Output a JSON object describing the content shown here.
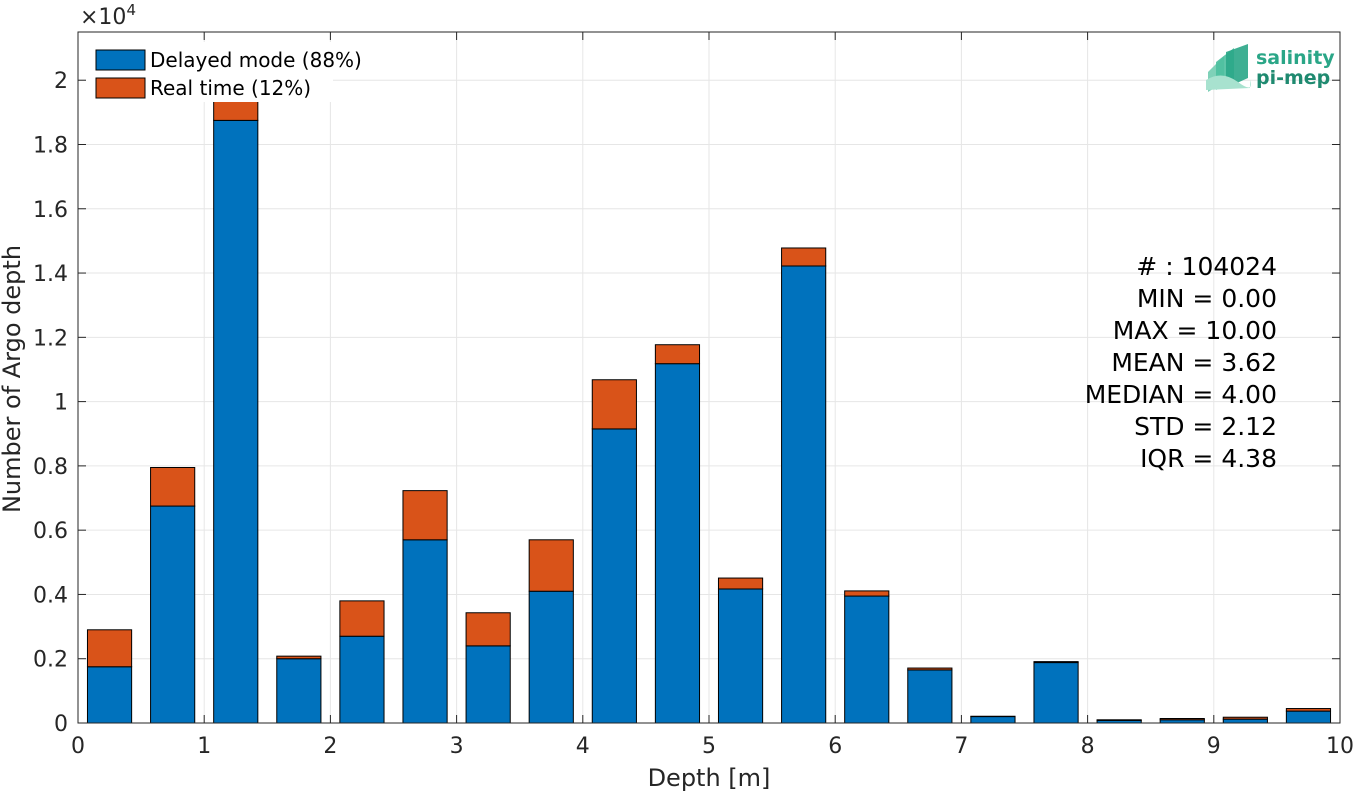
{
  "chart_data": {
    "type": "bar",
    "stacked": true,
    "xlabel": "Depth [m]",
    "ylabel": "Number of Argo depth",
    "y_multiplier": "×10",
    "y_exponent": "4",
    "xlim": [
      0,
      10
    ],
    "ylim": [
      0,
      2.15
    ],
    "grid": true,
    "legend_position": "top-left",
    "x_ticks": [
      "0",
      "1",
      "2",
      "3",
      "4",
      "5",
      "6",
      "7",
      "8",
      "9",
      "10"
    ],
    "y_ticks": [
      "0",
      "0.2",
      "0.4",
      "0.6",
      "0.8",
      "1",
      "1.2",
      "1.4",
      "1.6",
      "1.8",
      "2"
    ],
    "bin_edges": [
      0,
      0.5,
      1,
      1.5,
      2,
      2.5,
      3,
      3.5,
      4,
      4.5,
      5,
      5.5,
      6,
      6.5,
      7,
      7.5,
      8,
      8.5,
      9,
      9.5,
      10
    ],
    "series": [
      {
        "name": "Delayed mode (88%)",
        "color": "#0072BD",
        "values": [
          0.175,
          0.675,
          1.875,
          0.2,
          0.27,
          0.57,
          0.24,
          0.41,
          0.915,
          1.118,
          0.417,
          1.422,
          0.395,
          0.165,
          0.02,
          0.188,
          0.008,
          0.01,
          0.012,
          0.037
        ]
      },
      {
        "name": "Real time (12%)",
        "color": "#D95319",
        "values": [
          0.115,
          0.12,
          0.17,
          0.008,
          0.11,
          0.153,
          0.103,
          0.16,
          0.153,
          0.059,
          0.034,
          0.056,
          0.016,
          0.006,
          0.001,
          0.003,
          0.002,
          0.004,
          0.006,
          0.008
        ]
      }
    ],
    "stats": [
      "# : 104024",
      "MIN = 0.00",
      "MAX =  10.00",
      "MEAN = 3.62",
      "MEDIAN = 4.00",
      "STD = 2.12",
      "IQR = 4.38"
    ]
  },
  "logo": {
    "line1": "salinity",
    "line2": "pi-mep",
    "color": "#2aa687"
  }
}
